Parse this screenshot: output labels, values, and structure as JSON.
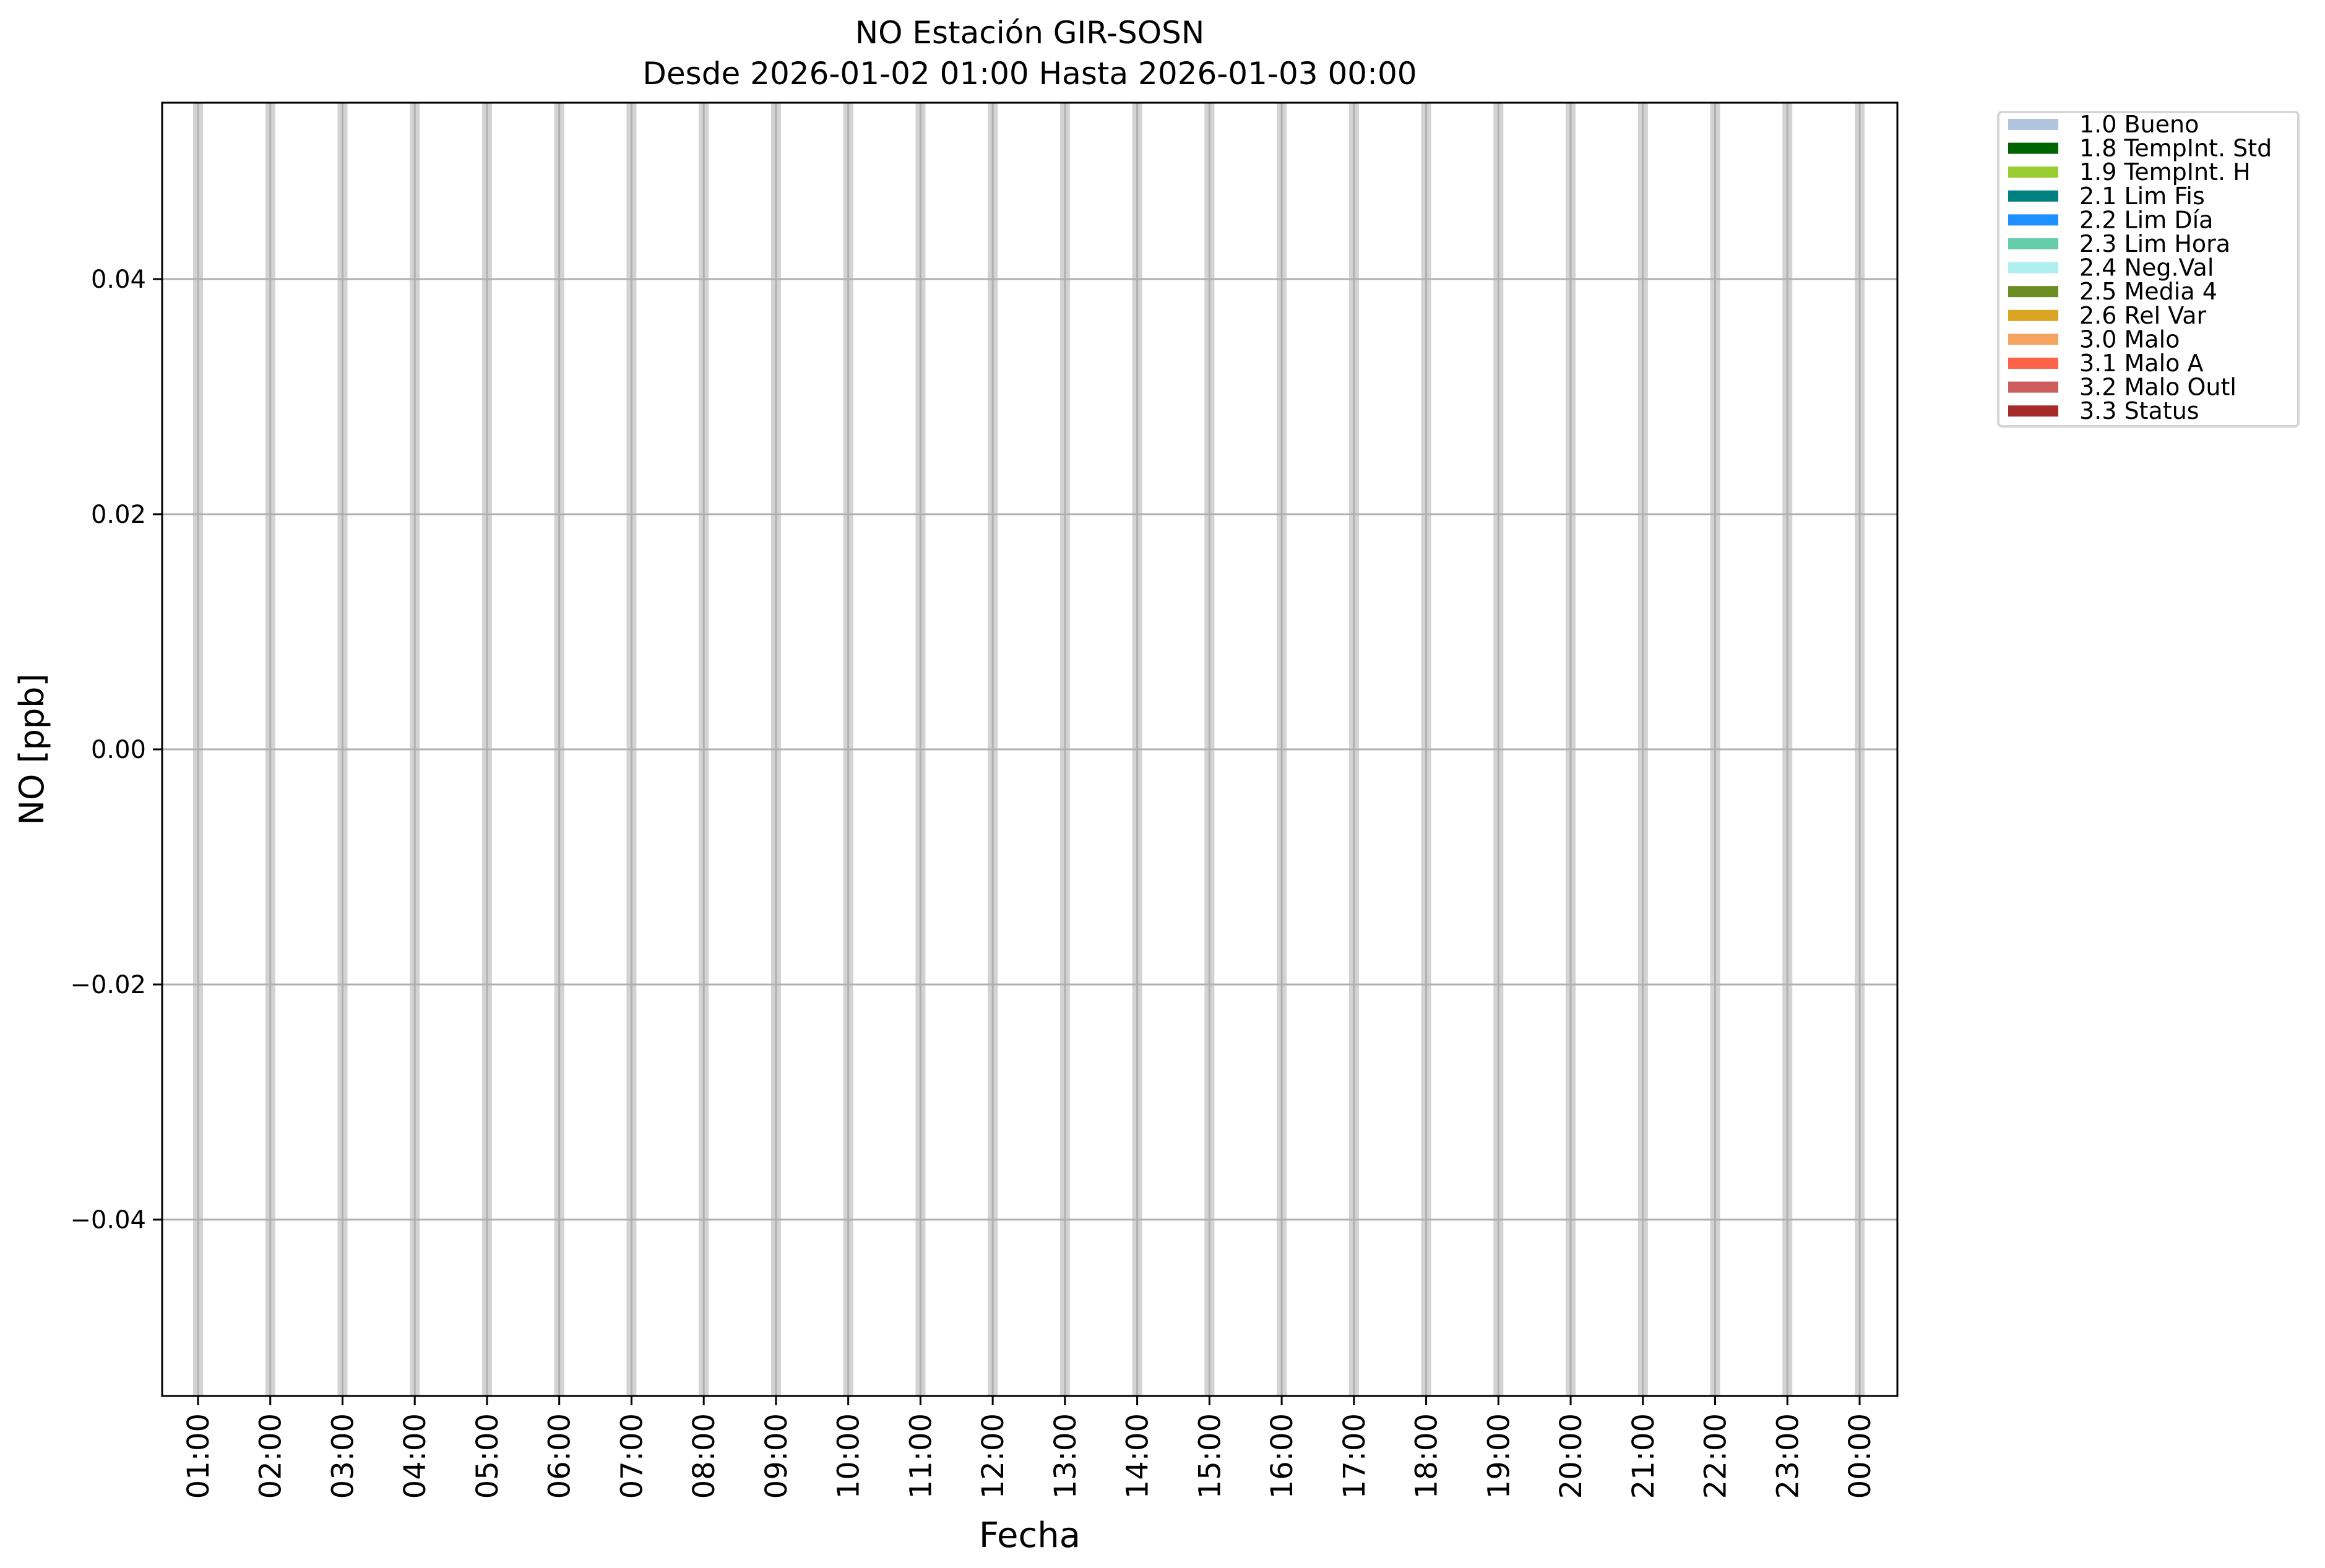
{
  "chart_data": {
    "type": "bar",
    "title": "NO Estación GIR-SOSN",
    "subtitle": "Desde 2026-01-02 01:00 Hasta 2026-01-03 00:00",
    "xlabel": "Fecha",
    "ylabel": "NO [ppb]",
    "x": [
      "01:00",
      "02:00",
      "03:00",
      "04:00",
      "05:00",
      "06:00",
      "07:00",
      "08:00",
      "09:00",
      "10:00",
      "11:00",
      "12:00",
      "13:00",
      "14:00",
      "15:00",
      "16:00",
      "17:00",
      "18:00",
      "19:00",
      "20:00",
      "21:00",
      "22:00",
      "23:00",
      "00:00"
    ],
    "ylim": [
      -0.055,
      0.055
    ],
    "yticks": [
      -0.04,
      -0.02,
      0.0,
      0.02,
      0.04
    ],
    "ytick_labels": [
      "−0.04",
      "−0.02",
      "0.00",
      "0.02",
      "0.04"
    ],
    "grid": true,
    "legend_placement": "outside-top-right",
    "legend": [
      {
        "label": "1.0 Bueno",
        "color": "#b0c4de"
      },
      {
        "label": "1.8 TempInt. Std",
        "color": "#006400"
      },
      {
        "label": "1.9 TempInt. H",
        "color": "#9acd32"
      },
      {
        "label": "2.1 Lim Fis",
        "color": "#008080"
      },
      {
        "label": "2.2 Lim Día",
        "color": "#1e90ff"
      },
      {
        "label": "2.3 Lim Hora",
        "color": "#66cdaa"
      },
      {
        "label": "2.4 Neg.Val",
        "color": "#afeeee"
      },
      {
        "label": "2.5 Media 4",
        "color": "#6b8e23"
      },
      {
        "label": "2.6 Rel Var",
        "color": "#daa520"
      },
      {
        "label": "3.0 Malo",
        "color": "#f4a460"
      },
      {
        "label": "3.1 Malo A",
        "color": "#ff6347"
      },
      {
        "label": "3.2 Malo Outl",
        "color": "#cd5c5c"
      },
      {
        "label": "3.3 Status",
        "color": "#a52a2a"
      }
    ],
    "series": [],
    "hour_band_color": "#d3d3d3",
    "grid_color": "#b0b0b0"
  }
}
